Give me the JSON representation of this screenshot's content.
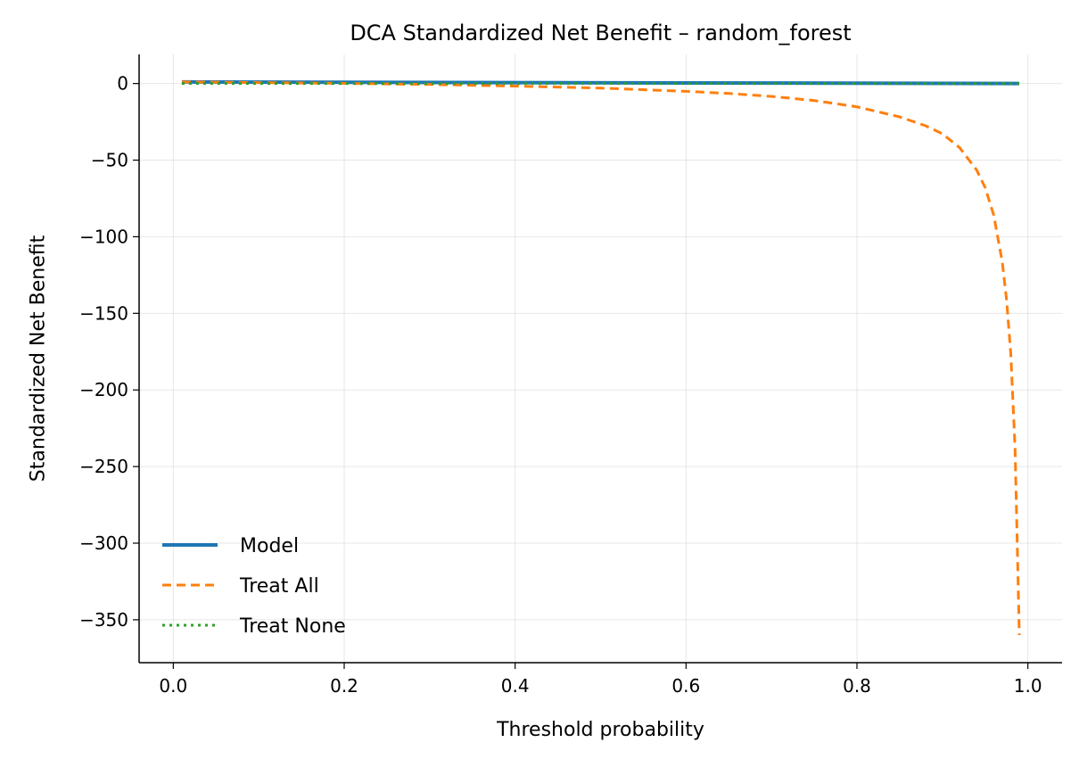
{
  "chart_data": {
    "type": "line",
    "title": "DCA Standardized Net Benefit – random_forest",
    "xlabel": "Threshold probability",
    "ylabel": "Standardized Net Benefit",
    "xlim": [
      -0.04,
      1.04
    ],
    "ylim": [
      -378,
      19
    ],
    "xticks": [
      0.0,
      0.2,
      0.4,
      0.6,
      0.8,
      1.0
    ],
    "xtick_labels": [
      "0.0",
      "0.2",
      "0.4",
      "0.6",
      "0.8",
      "1.0"
    ],
    "yticks": [
      0,
      -50,
      -100,
      -150,
      -200,
      -250,
      -300,
      -350
    ],
    "ytick_labels": [
      "0",
      "−50",
      "−100",
      "−150",
      "−200",
      "−250",
      "−300",
      "−350"
    ],
    "grid": true,
    "legend_position": "lower-left",
    "series": [
      {
        "name": "Model",
        "color": "#1f77b4",
        "style": "solid",
        "x": [
          0.01,
          0.99
        ],
        "y": [
          1.0,
          0.0
        ]
      },
      {
        "name": "Treat All",
        "color": "#ff7f0e",
        "style": "dashed",
        "x": [
          0.01,
          0.1,
          0.2,
          0.3,
          0.4,
          0.5,
          0.6,
          0.65,
          0.7,
          0.75,
          0.8,
          0.85,
          0.88,
          0.9,
          0.92,
          0.94,
          0.95,
          0.96,
          0.97,
          0.975,
          0.98,
          0.985,
          0.99
        ],
        "y": [
          1.0,
          0.6,
          0.1,
          -0.6,
          -1.7,
          -3.0,
          -5.1,
          -6.5,
          -8.4,
          -11.1,
          -15.2,
          -21.8,
          -27.5,
          -32.8,
          -41.8,
          -56.4,
          -67.9,
          -85.8,
          -116.4,
          -140.8,
          -176.4,
          -238.0,
          -360.0
        ]
      },
      {
        "name": "Treat None",
        "color": "#2ca02c",
        "style": "dotted",
        "x": [
          0.01,
          0.99
        ],
        "y": [
          0.0,
          0.0
        ]
      }
    ]
  }
}
